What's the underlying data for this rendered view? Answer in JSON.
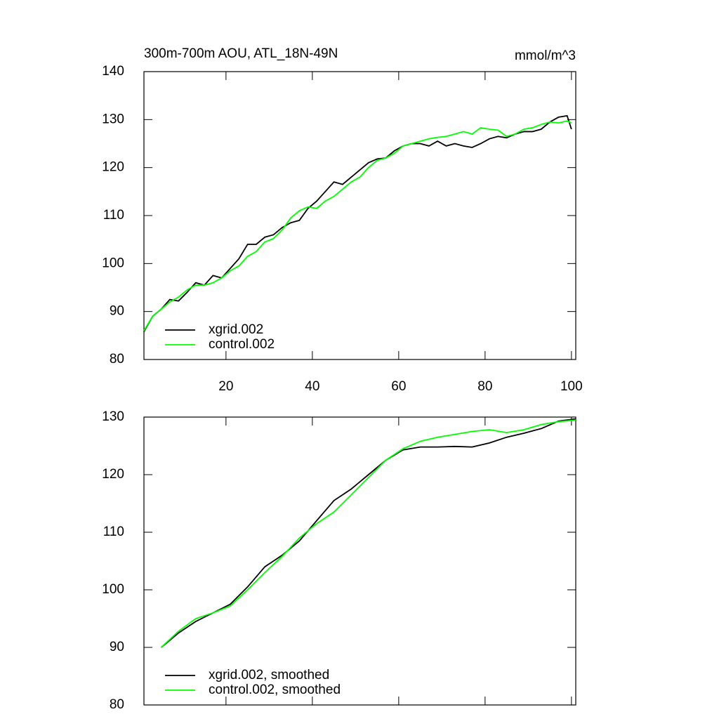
{
  "chart_data": [
    {
      "type": "line",
      "title": "300m-700m AOU, ATL_18N-49N",
      "units": "mmol/m^3",
      "x": [
        1,
        3,
        5,
        7,
        9,
        11,
        13,
        15,
        17,
        19,
        21,
        23,
        25,
        27,
        29,
        31,
        33,
        35,
        37,
        39,
        41,
        43,
        45,
        47,
        49,
        51,
        53,
        55,
        57,
        59,
        61,
        63,
        65,
        67,
        69,
        71,
        73,
        75,
        77,
        79,
        81,
        83,
        85,
        87,
        89,
        91,
        93,
        95,
        97,
        99,
        100
      ],
      "series": [
        {
          "name": "xgrid.002",
          "color": "#000000",
          "values": [
            85.8,
            89,
            90.5,
            92.5,
            92.2,
            94,
            96,
            95.5,
            97.5,
            97,
            99,
            101,
            104,
            104,
            105.5,
            106,
            107.5,
            108.5,
            109,
            111.5,
            113,
            115,
            117,
            116.5,
            118,
            119.5,
            121,
            121.8,
            122,
            123.5,
            124.5,
            125,
            125,
            124.5,
            125.5,
            124.5,
            125,
            124.5,
            124.2,
            125,
            126,
            126.5,
            126.2,
            127,
            127.5,
            127.5,
            128,
            129.5,
            130.5,
            130.8,
            128
          ]
        },
        {
          "name": "control.002",
          "color": "#00ff00",
          "values": [
            86,
            89,
            90.5,
            92,
            93,
            94.5,
            95.5,
            95.5,
            96,
            97,
            98.5,
            99.5,
            101.5,
            102.5,
            104.5,
            105.2,
            107,
            109.5,
            111,
            111.8,
            111.5,
            113,
            114,
            115.5,
            117,
            118,
            120,
            121.5,
            122,
            123,
            124.5,
            125,
            125.5,
            126,
            126.3,
            126.5,
            127,
            127.5,
            127,
            128.3,
            128,
            127.8,
            126.5,
            127,
            128,
            128.3,
            129,
            129.5,
            129.3,
            129.7,
            129.3
          ]
        }
      ],
      "xlim": [
        1,
        101
      ],
      "xticks": [
        20,
        40,
        60,
        80,
        100
      ],
      "xtick_labels": true,
      "ylim": [
        80,
        140
      ],
      "yticks": [
        80,
        90,
        100,
        110,
        120,
        130,
        140
      ]
    },
    {
      "type": "line",
      "x": [
        5,
        9,
        13,
        17,
        21,
        25,
        29,
        33,
        37,
        41,
        45,
        49,
        53,
        57,
        61,
        65,
        69,
        73,
        77,
        81,
        85,
        89,
        93,
        97,
        101
      ],
      "series": [
        {
          "name": "xgrid.002, smoothed",
          "color": "#000000",
          "values": [
            90,
            92.5,
            94.5,
            96,
            97.5,
            100.5,
            104,
            106,
            108.5,
            112,
            115.5,
            117.5,
            120,
            122.5,
            124.3,
            124.8,
            124.8,
            124.9,
            124.8,
            125.5,
            126.5,
            127.2,
            128,
            129.3,
            129.7
          ]
        },
        {
          "name": "control.002, smoothed",
          "color": "#00ff00",
          "values": [
            90,
            92.8,
            95,
            96,
            97.2,
            100,
            103,
            105.8,
            109,
            111.5,
            113.5,
            116.5,
            119.5,
            122.5,
            124.5,
            125.8,
            126.5,
            127,
            127.5,
            127.8,
            127.3,
            127.8,
            128.7,
            129.2,
            129.5
          ]
        }
      ],
      "xlim": [
        1,
        101
      ],
      "xticks": [
        20,
        40,
        60,
        80,
        100
      ],
      "xtick_labels": false,
      "ylim": [
        80,
        130
      ],
      "yticks": [
        80,
        90,
        100,
        110,
        120,
        130
      ]
    }
  ]
}
